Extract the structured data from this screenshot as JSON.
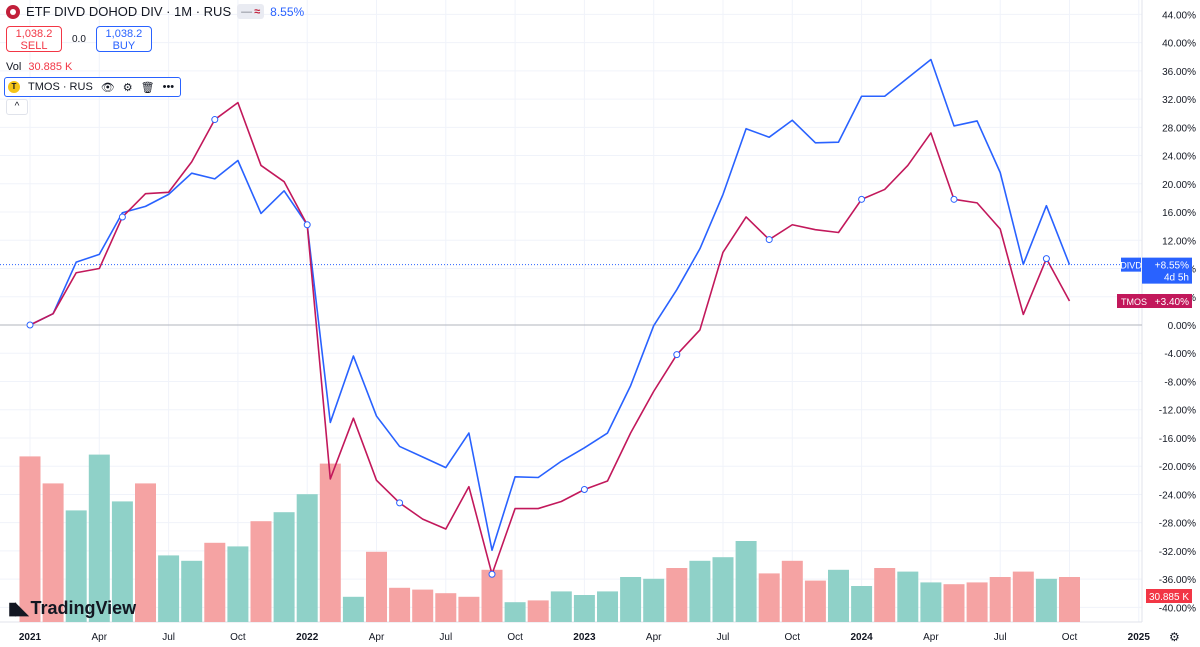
{
  "header": {
    "title": "ETF DIVD DOHOD DIV · 1M · RUS",
    "toggle_text": "≈",
    "change_pct": "8.55%",
    "sell_price": "1,038.2",
    "sell_label": "SELL",
    "spread": "0.0",
    "buy_price": "1,038.2",
    "buy_label": "BUY",
    "vol_label": "Vol",
    "vol_value": "30.885 K",
    "compare_icon": "T",
    "compare_symbol": "TMOS · RUS",
    "collapse_icon": "^"
  },
  "branding": {
    "logo_text": "TradingView"
  },
  "chart_data": {
    "type": "line",
    "x": [
      "2021-01",
      "2021-02",
      "2021-03",
      "2021-04",
      "2021-05",
      "2021-06",
      "2021-07",
      "2021-08",
      "2021-09",
      "2021-10",
      "2021-11",
      "2021-12",
      "2022-01",
      "2022-02",
      "2022-03",
      "2022-04",
      "2022-05",
      "2022-06",
      "2022-07",
      "2022-08",
      "2022-09",
      "2022-10",
      "2022-11",
      "2022-12",
      "2023-01",
      "2023-02",
      "2023-03",
      "2023-04",
      "2023-05",
      "2023-06",
      "2023-07",
      "2023-08",
      "2023-09",
      "2023-10",
      "2023-11",
      "2023-12",
      "2024-01",
      "2024-02",
      "2024-03",
      "2024-04",
      "2024-05",
      "2024-06",
      "2024-07",
      "2024-08",
      "2024-09",
      "2024-10"
    ],
    "x_ticks": [
      "2021",
      "Apr",
      "Jul",
      "Oct",
      "2022",
      "Apr",
      "Jul",
      "Oct",
      "2023",
      "Apr",
      "Jul",
      "Oct",
      "2024",
      "Apr",
      "Jul",
      "Oct",
      "2025"
    ],
    "y_ticks": [
      "44.00%",
      "40.00%",
      "36.00%",
      "32.00%",
      "28.00%",
      "24.00%",
      "20.00%",
      "16.00%",
      "12.00%",
      "8.00%",
      "4.00%",
      "0.00%",
      "-4.00%",
      "-8.00%",
      "-12.00%",
      "-16.00%",
      "-20.00%",
      "-24.00%",
      "-28.00%",
      "-32.00%",
      "-36.00%",
      "-40.00%"
    ],
    "ylim": [
      -41.5,
      45.5
    ],
    "series": [
      {
        "name": "DIVD",
        "color": "#2962ff",
        "label": "DIVD",
        "value_label": "8.55%",
        "sub_label": "4d 5h",
        "values": [
          0,
          1.6,
          8.9,
          10.0,
          15.9,
          16.8,
          18.5,
          21.5,
          20.7,
          23.3,
          15.8,
          19.0,
          14.2,
          -13.8,
          -4.4,
          -12.9,
          -17.2,
          -18.7,
          -20.2,
          -15.3,
          -31.9,
          -21.5,
          -21.6,
          -19.3,
          -17.4,
          -15.3,
          -8.6,
          -0.1,
          5.0,
          10.8,
          18.5,
          27.8,
          26.6,
          29.0,
          25.8,
          25.9,
          32.4,
          32.4,
          35.0,
          37.6,
          28.2,
          28.9,
          21.6,
          8.6,
          16.9,
          8.55
        ]
      },
      {
        "name": "TMOS",
        "color": "#c2185b",
        "label": "TMOS",
        "value_label": "+3.40%",
        "values": [
          0,
          1.6,
          7.4,
          8.0,
          15.3,
          18.6,
          18.8,
          23.1,
          29.1,
          31.5,
          22.6,
          20.3,
          14.2,
          -21.8,
          -13.2,
          -22.0,
          -25.2,
          -27.5,
          -28.9,
          -22.9,
          -35.3,
          -26.0,
          -26.0,
          -25.0,
          -23.3,
          -22.1,
          -15.3,
          -9.4,
          -4.2,
          -0.7,
          10.3,
          15.3,
          12.1,
          14.2,
          13.5,
          13.1,
          17.8,
          19.2,
          22.6,
          27.2,
          17.8,
          17.3,
          13.6,
          1.5,
          9.4,
          3.4
        ]
      }
    ],
    "volume": {
      "value_label": "30.885 K",
      "up_color": "#8fd1c8",
      "down_color": "#f5a3a3",
      "values": [
        0.92,
        0.77,
        0.62,
        0.93,
        0.67,
        0.77,
        0.37,
        0.34,
        0.44,
        0.42,
        0.56,
        0.61,
        0.71,
        0.88,
        0.14,
        0.39,
        0.19,
        0.18,
        0.16,
        0.14,
        0.29,
        0.11,
        0.12,
        0.17,
        0.15,
        0.17,
        0.25,
        0.24,
        0.3,
        0.34,
        0.36,
        0.45,
        0.27,
        0.34,
        0.23,
        0.29,
        0.2,
        0.3,
        0.28,
        0.22,
        0.21,
        0.22,
        0.25,
        0.28,
        0.24,
        0.25
      ],
      "up": [
        false,
        false,
        true,
        true,
        true,
        false,
        true,
        true,
        false,
        true,
        false,
        true,
        true,
        false,
        true,
        false,
        false,
        false,
        false,
        false,
        false,
        true,
        false,
        true,
        true,
        true,
        true,
        true,
        false,
        true,
        true,
        true,
        false,
        false,
        false,
        true,
        true,
        false,
        true,
        true,
        false,
        false,
        false,
        false,
        true,
        false
      ]
    },
    "markers": [
      0,
      4,
      8,
      12,
      16,
      20,
      24,
      28,
      32,
      36,
      40,
      44
    ],
    "grid": true,
    "legend": "top-left"
  }
}
